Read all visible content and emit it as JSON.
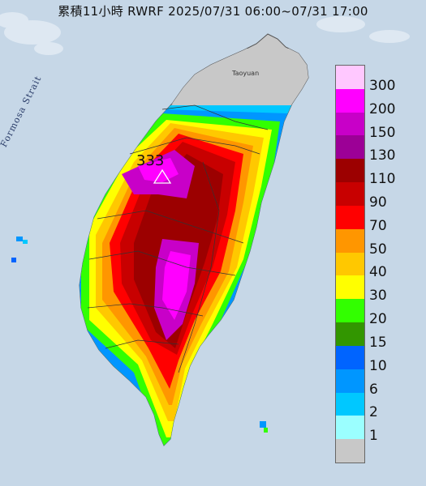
{
  "title": "累積11小時 RWRF 2025/07/31 06:00~07/31 17:00",
  "peak_label": "333",
  "labels": {
    "strait": "Formosa Strait",
    "city": "Taoyuan"
  },
  "legend": [
    {
      "label": "300",
      "color": "#ffc8ff"
    },
    {
      "label": "200",
      "color": "#ff00ff"
    },
    {
      "label": "150",
      "color": "#c800c8"
    },
    {
      "label": "130",
      "color": "#9c0096"
    },
    {
      "label": "110",
      "color": "#9c0000"
    },
    {
      "label": "90",
      "color": "#c80000"
    },
    {
      "label": "70",
      "color": "#ff0000"
    },
    {
      "label": "50",
      "color": "#ff9600"
    },
    {
      "label": "40",
      "color": "#ffc800"
    },
    {
      "label": "30",
      "color": "#ffff00"
    },
    {
      "label": "20",
      "color": "#32ff00"
    },
    {
      "label": "15",
      "color": "#329600"
    },
    {
      "label": "10",
      "color": "#0064ff"
    },
    {
      "label": "6",
      "color": "#0096ff"
    },
    {
      "label": "2",
      "color": "#00c8ff"
    },
    {
      "label": "1",
      "color": "#9bffff"
    },
    {
      "label": "",
      "color": "#c8c8c8"
    }
  ]
}
